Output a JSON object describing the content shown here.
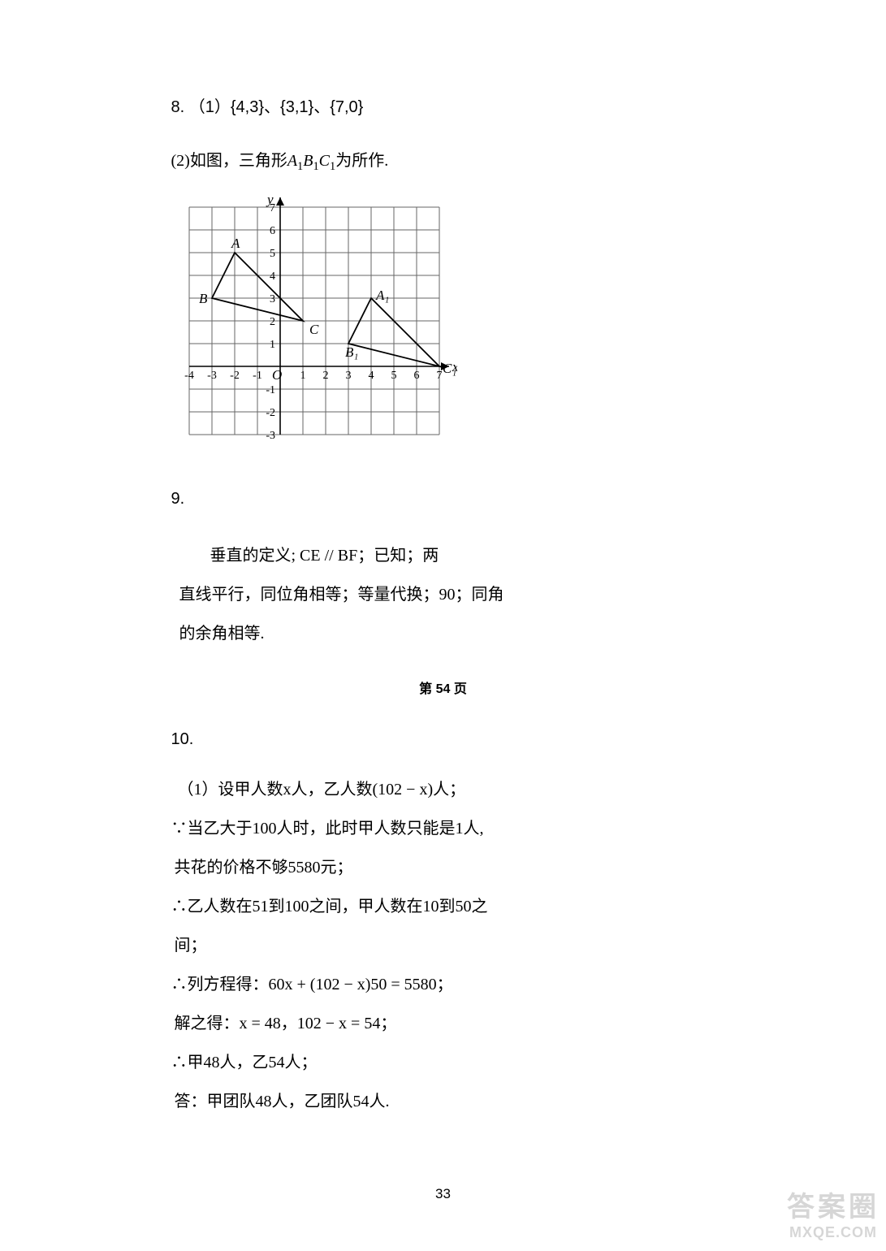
{
  "q8": {
    "num": "8.",
    "part1": "（1）{4,3}、{3,1}、{7,0}",
    "part2_prefix": "(2)如图，三角形",
    "part2_tri": "A₁B₁C₁",
    "part2_suffix": "为所作."
  },
  "q9": {
    "num": "9.",
    "lines": [
      "垂直的定义; CE // BF；已知；两",
      "直线平行，同位角相等；等量代换；90；同角",
      "的余角相等."
    ]
  },
  "page_marker": "第 54 页",
  "q10": {
    "num": "10.",
    "lines": [
      "（1）设甲人数x人，乙人数(102 − x)人；",
      "∵当乙大于100人时，此时甲人数只能是1人,",
      "共花的价格不够5580元；",
      "∴乙人数在51到100之间，甲人数在10到50之",
      "间；",
      "∴列方程得：60x + (102 − x)50 = 5580；",
      "解之得：x = 48，102 − x = 54；",
      "∴甲48人，乙54人；",
      "答：甲团队48人，乙团队54人."
    ]
  },
  "footer_page": "33",
  "watermark": {
    "top": "答案圈",
    "bot": "MXQE.COM"
  },
  "figure": {
    "grid": {
      "x_min": -4,
      "x_max": 7,
      "y_min": -3,
      "y_max": 7,
      "cell": 28,
      "stroke": "#666666",
      "stroke_width": 1,
      "axis_stroke": "#000000",
      "axis_width": 1.6
    },
    "axis_labels": {
      "x": "x",
      "y": "y",
      "origin": "O",
      "x_ticks": [
        -4,
        -3,
        -2,
        -1,
        1,
        2,
        3,
        4,
        5,
        6,
        7
      ],
      "y_ticks": [
        -3,
        -2,
        -1,
        1,
        2,
        3,
        4,
        5,
        6,
        7
      ]
    },
    "triangle1": {
      "points": [
        [
          -2,
          5
        ],
        [
          -3,
          3
        ],
        [
          1,
          2
        ]
      ],
      "labels": [
        "A",
        "B",
        "C"
      ],
      "stroke": "#000000",
      "stroke_width": 1.8
    },
    "triangle2": {
      "points": [
        [
          4,
          3
        ],
        [
          3,
          1
        ],
        [
          7,
          0
        ]
      ],
      "labels": [
        "A₁",
        "B₁",
        "C₁"
      ],
      "stroke": "#000000",
      "stroke_width": 1.8
    },
    "font_family": "Times New Roman, serif",
    "label_fontsize": 17,
    "tick_fontsize": 14
  }
}
